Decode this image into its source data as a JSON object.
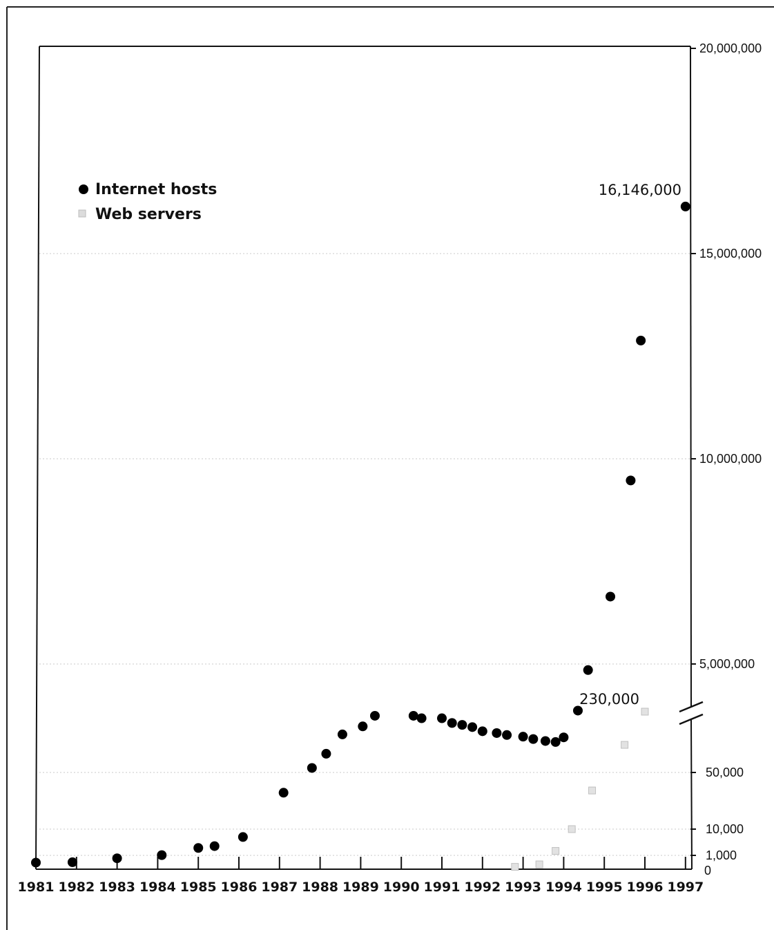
{
  "chart_data": {
    "type": "scatter",
    "title": "",
    "xlabel": "",
    "ylabel": "",
    "x_categories": [
      "1981",
      "1982",
      "1983",
      "1984",
      "1985",
      "1986",
      "1987",
      "1988",
      "1989",
      "1990",
      "1991",
      "1992",
      "1993",
      "1994",
      "1995",
      "1996",
      "1997"
    ],
    "xlim": [
      1981,
      1997
    ],
    "y_axis": {
      "position": "right",
      "broken": true,
      "lower_segment_ticks": [
        "0",
        "1,000",
        "10,000",
        "50,000"
      ],
      "upper_segment_ticks": [
        "5,000,000",
        "10,000,000",
        "15,000,000",
        "20,000,000"
      ],
      "upper_segment_range": [
        0,
        20000000
      ]
    },
    "grid": "horizontal-dotted",
    "legend": {
      "placement": "top-left",
      "entries": [
        {
          "label": "Internet hosts",
          "marker": "filled-circle",
          "color": "#000000"
        },
        {
          "label": "Web servers",
          "marker": "light-square",
          "color": "#c8c8c8"
        }
      ]
    },
    "annotations": [
      {
        "text": "16,146,000",
        "series": "Internet hosts",
        "x": 1997.0,
        "y": 16146000
      },
      {
        "text": "230,000",
        "series": "Web servers",
        "x": 1996.0,
        "y": 230000
      }
    ],
    "series": [
      {
        "name": "Internet hosts",
        "points": [
          {
            "x": 1981.0,
            "y": 213
          },
          {
            "x": 1981.9,
            "y": 235
          },
          {
            "x": 1983.0,
            "y": 562
          },
          {
            "x": 1984.1,
            "y": 1024
          },
          {
            "x": 1985.0,
            "y": 1961
          },
          {
            "x": 1985.4,
            "y": 2308
          },
          {
            "x": 1986.1,
            "y": 5089
          },
          {
            "x": 1987.1,
            "y": 28174
          },
          {
            "x": 1987.8,
            "y": 56000
          },
          {
            "x": 1988.15,
            "y": 80000
          },
          {
            "x": 1988.55,
            "y": 130000
          },
          {
            "x": 1989.05,
            "y": 159000
          },
          {
            "x": 1989.35,
            "y": 313000
          },
          {
            "x": 1990.3,
            "y": 313000
          },
          {
            "x": 1990.5,
            "y": 376000
          },
          {
            "x": 1991.0,
            "y": 376000
          },
          {
            "x": 1991.25,
            "y": 535000
          },
          {
            "x": 1991.5,
            "y": 617000
          },
          {
            "x": 1991.75,
            "y": 727000
          },
          {
            "x": 1992.0,
            "y": 992000
          },
          {
            "x": 1992.35,
            "y": 1136000
          },
          {
            "x": 1992.6,
            "y": 1313000
          },
          {
            "x": 1993.0,
            "y": 1486000
          },
          {
            "x": 1993.25,
            "y": 1776000
          },
          {
            "x": 1993.55,
            "y": 2056000
          },
          {
            "x": 1993.8,
            "y": 2217000
          },
          {
            "x": 1994.0,
            "y": 3212000
          },
          {
            "x": 1994.35,
            "y": 3864000
          },
          {
            "x": 1994.6,
            "y": 4852000
          },
          {
            "x": 1995.15,
            "y": 6642000
          },
          {
            "x": 1995.65,
            "y": 9472000
          },
          {
            "x": 1995.9,
            "y": 12881000
          },
          {
            "x": 1997.0,
            "y": 16146000
          }
        ]
      },
      {
        "name": "Web servers",
        "points": [
          {
            "x": 1992.8,
            "y": 50
          },
          {
            "x": 1993.4,
            "y": 130
          },
          {
            "x": 1993.8,
            "y": 1500
          },
          {
            "x": 1994.2,
            "y": 10000
          },
          {
            "x": 1994.7,
            "y": 30000
          },
          {
            "x": 1995.5,
            "y": 100000
          },
          {
            "x": 1996.0,
            "y": 230000
          }
        ]
      }
    ]
  }
}
